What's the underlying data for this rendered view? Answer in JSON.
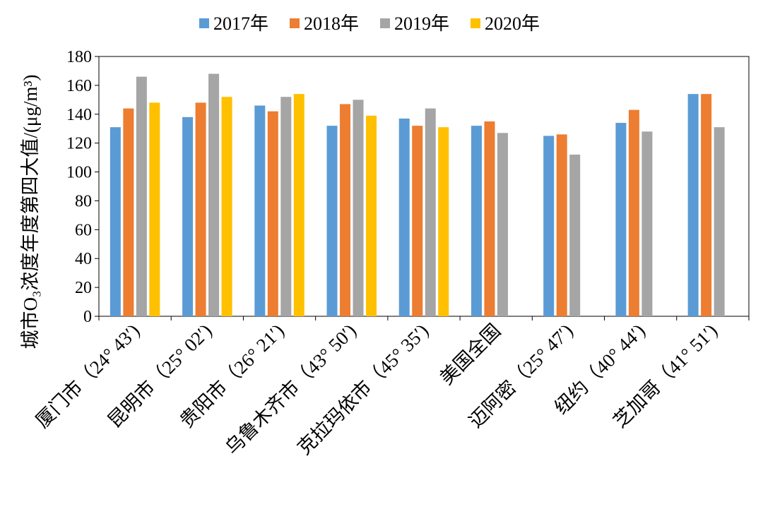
{
  "chart_data": {
    "type": "bar",
    "ylabel": "城市O₃浓度年度第四大值/(μg/m³)",
    "xlabel": "",
    "ylim": [
      0,
      180
    ],
    "yticks": [
      0,
      20,
      40,
      60,
      80,
      100,
      120,
      140,
      160,
      180
    ],
    "grid": false,
    "legend_placement": "top",
    "categories": [
      "厦门市（24° 43′)",
      "昆明市（25° 02′)",
      "贵阳市（26° 21′)",
      "乌鲁木齐市（43° 50′)",
      "克拉玛依市（45° 35′)",
      "美国全国",
      "迈阿密（25° 47′)",
      "纽约（40° 44′)",
      "芝加哥（41° 51′)"
    ],
    "series": [
      {
        "name": "2017年",
        "color": "#5B9BD5",
        "values": [
          131,
          138,
          146,
          132,
          137,
          132,
          125,
          134,
          154
        ]
      },
      {
        "name": "2018年",
        "color": "#ED7D31",
        "values": [
          144,
          148,
          142,
          147,
          132,
          135,
          126,
          143,
          154
        ]
      },
      {
        "name": "2019年",
        "color": "#A5A5A5",
        "values": [
          166,
          168,
          152,
          150,
          144,
          127,
          112,
          128,
          131
        ]
      },
      {
        "name": "2020年",
        "color": "#FFC000",
        "values": [
          148,
          152,
          154,
          139,
          131,
          null,
          null,
          null,
          null
        ]
      }
    ]
  }
}
